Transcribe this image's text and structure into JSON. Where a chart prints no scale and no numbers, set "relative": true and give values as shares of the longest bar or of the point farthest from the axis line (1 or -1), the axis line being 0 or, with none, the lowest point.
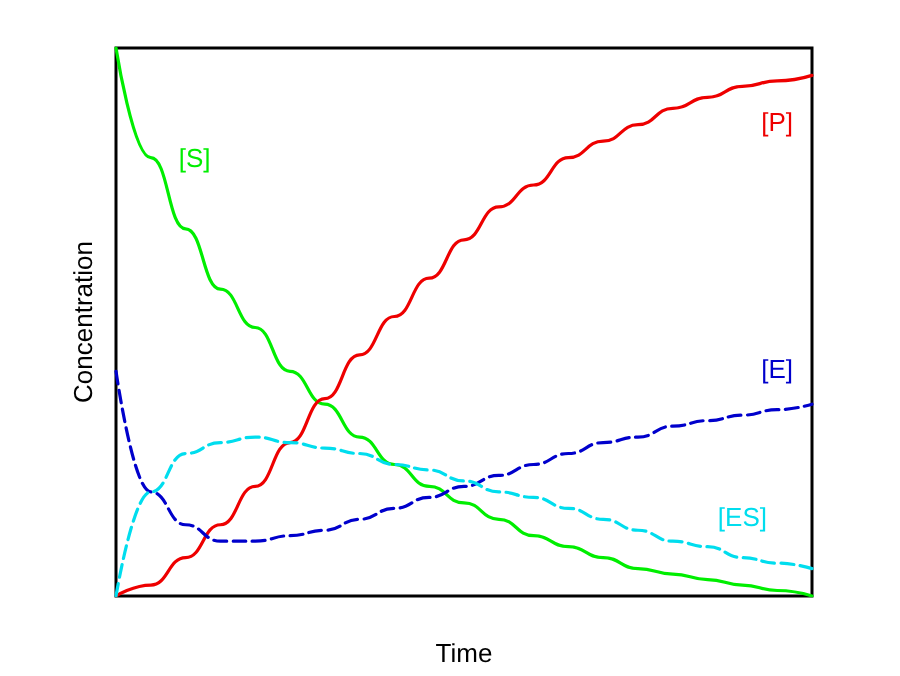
{
  "chart_data": {
    "type": "line",
    "relative": true,
    "xlabel": "Time",
    "ylabel": "Concentration",
    "grid": false,
    "legend": false,
    "marker": "none",
    "categories": [
      null,
      null,
      null,
      null,
      null,
      null,
      null,
      null,
      null,
      null,
      null,
      null,
      null,
      null,
      null,
      null,
      null,
      null,
      null,
      null,
      null
    ],
    "series": [
      {
        "name": "[S]",
        "color": "#00ee00",
        "line_style": "solid",
        "values": [
          1,
          0.8,
          0.67,
          0.56,
          0.49,
          0.41,
          0.35,
          0.29,
          0.24,
          0.2,
          0.17,
          0.14,
          0.11,
          0.09,
          0.07,
          0.05,
          0.04,
          0.03,
          0.02,
          0.01,
          0
        ]
      },
      {
        "name": "[P]",
        "color": "#ee0000",
        "line_style": "solid",
        "values": [
          0,
          0.02,
          0.07,
          0.13,
          0.2,
          0.28,
          0.36,
          0.44,
          0.51,
          0.58,
          0.65,
          0.71,
          0.75,
          0.8,
          0.83,
          0.86,
          0.89,
          0.91,
          0.93,
          0.94,
          0.95
        ]
      },
      {
        "name": "[E]",
        "color": "#0000cc",
        "line_style": "dashed",
        "values": [
          0.41,
          0.19,
          0.13,
          0.1,
          0.1,
          0.11,
          0.12,
          0.14,
          0.16,
          0.18,
          0.2,
          0.22,
          0.24,
          0.26,
          0.28,
          0.29,
          0.31,
          0.32,
          0.33,
          0.34,
          0.35
        ]
      },
      {
        "name": "[ES]",
        "color": "#00ddee",
        "line_style": "dashed",
        "values": [
          0,
          0.19,
          0.26,
          0.28,
          0.29,
          0.28,
          0.27,
          0.26,
          0.24,
          0.23,
          0.21,
          0.19,
          0.18,
          0.16,
          0.14,
          0.12,
          0.1,
          0.09,
          0.07,
          0.06,
          0.05
        ]
      }
    ]
  }
}
